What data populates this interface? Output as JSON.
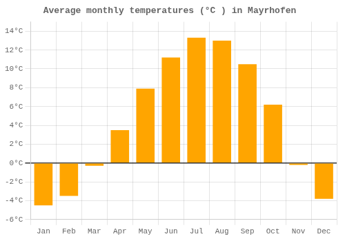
{
  "chart_data": {
    "type": "bar",
    "title": "Average monthly temperatures (°C ) in Mayrhofen",
    "categories": [
      "Jan",
      "Feb",
      "Mar",
      "Apr",
      "May",
      "Jun",
      "Jul",
      "Aug",
      "Sep",
      "Oct",
      "Nov",
      "Dec"
    ],
    "values": [
      -4.5,
      -3.5,
      -0.3,
      3.5,
      7.9,
      11.2,
      13.3,
      13.0,
      10.5,
      6.2,
      -0.2,
      -3.8
    ],
    "color": "#FFA500",
    "ylim": [
      -6,
      15
    ],
    "yticks": [
      {
        "value": -6,
        "label": "-6°C"
      },
      {
        "value": -4,
        "label": "-4°C"
      },
      {
        "value": -2,
        "label": "-2°C"
      },
      {
        "value": 0,
        "label": "0°C"
      },
      {
        "value": 2,
        "label": "2°C"
      },
      {
        "value": 4,
        "label": "4°C"
      },
      {
        "value": 6,
        "label": "6°C"
      },
      {
        "value": 8,
        "label": "8°C"
      },
      {
        "value": 10,
        "label": "10°C"
      },
      {
        "value": 12,
        "label": "12°C"
      },
      {
        "value": 14,
        "label": "14°C"
      }
    ],
    "grid": true
  }
}
